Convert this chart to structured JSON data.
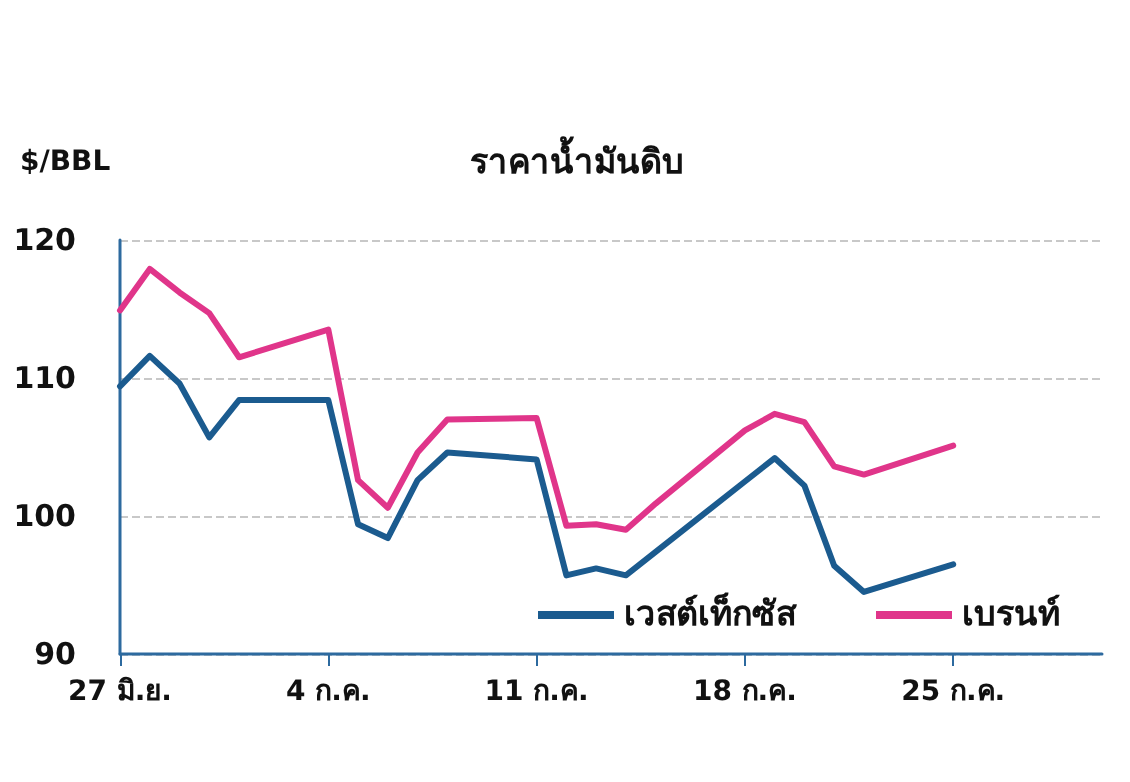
{
  "chart_data": {
    "type": "line",
    "title": "ราคาน้ำมันดิบ",
    "ylabel": "$/BBL",
    "x": [
      "--06-27",
      "--06-28",
      "--06-29",
      "--06-30",
      "--07-01",
      "--07-04",
      "--07-05",
      "--07-06",
      "--07-07",
      "--07-08",
      "--07-11",
      "--07-12",
      "--07-13",
      "--07-14",
      "--07-15",
      "--07-18",
      "--07-19",
      "--07-20",
      "--07-21",
      "--07-22",
      "--07-25"
    ],
    "series": [
      {
        "name": "เวสต์เท็กซัส",
        "color": "#1b5b8f",
        "values": [
          109.4,
          111.6,
          109.6,
          105.7,
          108.4,
          108.4,
          99.4,
          98.4,
          102.6,
          104.6,
          104.1,
          95.7,
          96.2,
          95.7,
          97.4,
          102.5,
          104.2,
          102.2,
          96.4,
          94.5,
          96.5
        ]
      },
      {
        "name": "เบรนท์",
        "color": "#e0358a",
        "values": [
          114.9,
          117.9,
          116.2,
          114.7,
          111.5,
          113.5,
          102.6,
          100.6,
          104.6,
          107.0,
          107.1,
          99.3,
          99.4,
          99.0,
          100.9,
          106.2,
          107.4,
          106.8,
          103.6,
          103.0,
          105.1
        ]
      }
    ],
    "xlim": [
      "--06-27",
      "--07-30"
    ],
    "xticks": [
      {
        "value": "--06-27",
        "label": "27 มิ.ย."
      },
      {
        "value": "--07-04",
        "label": "4 ก.ค."
      },
      {
        "value": "--07-11",
        "label": "11 ก.ค."
      },
      {
        "value": "--07-18",
        "label": "18 ก.ค."
      },
      {
        "value": "--07-25",
        "label": "25 ก.ค."
      }
    ],
    "ylim": [
      90,
      120
    ],
    "yticks": [
      90,
      100,
      110,
      120
    ],
    "grid": "y",
    "legend": "bottom right",
    "marker": "none",
    "line_style": "solid"
  }
}
